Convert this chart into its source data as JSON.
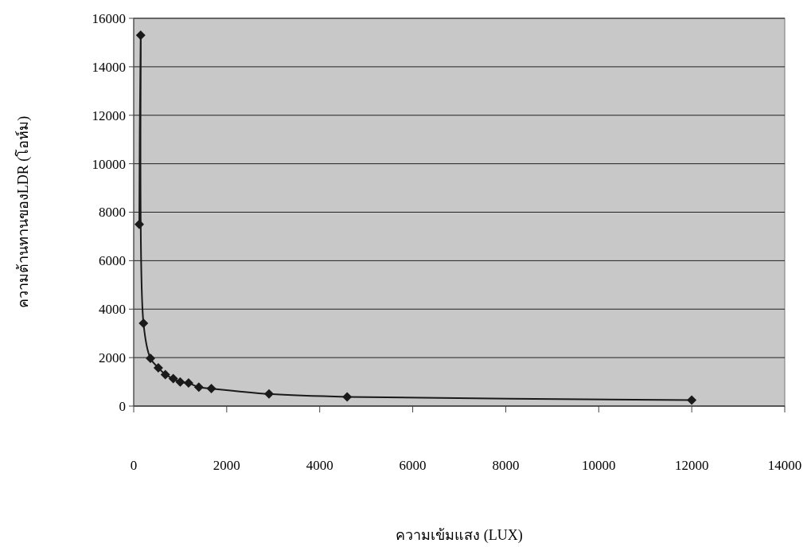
{
  "chart_data": {
    "type": "line",
    "xlabel": "ความเข้มแสง (LUX)",
    "ylabel": "ความต้านทานของLDR (โอห์ม)",
    "x": [
      120,
      150,
      210,
      360,
      530,
      680,
      850,
      1000,
      1180,
      1400,
      1670,
      2910,
      4590,
      12000
    ],
    "series": [
      {
        "color": "#1a1a1a",
        "values": [
          7500,
          15300,
          3420,
          1970,
          1580,
          1300,
          1130,
          990,
          950,
          780,
          720,
          500,
          380,
          250
        ]
      }
    ],
    "xlim": [
      0,
      14000
    ],
    "xticks": [
      0,
      2000,
      4000,
      6000,
      8000,
      10000,
      12000,
      14000
    ],
    "ylim": [
      0,
      16000
    ],
    "yticks": [
      0,
      2000,
      4000,
      6000,
      8000,
      10000,
      12000,
      14000,
      16000
    ],
    "grid": "y",
    "marker": "diamond",
    "line_style": "solid"
  }
}
